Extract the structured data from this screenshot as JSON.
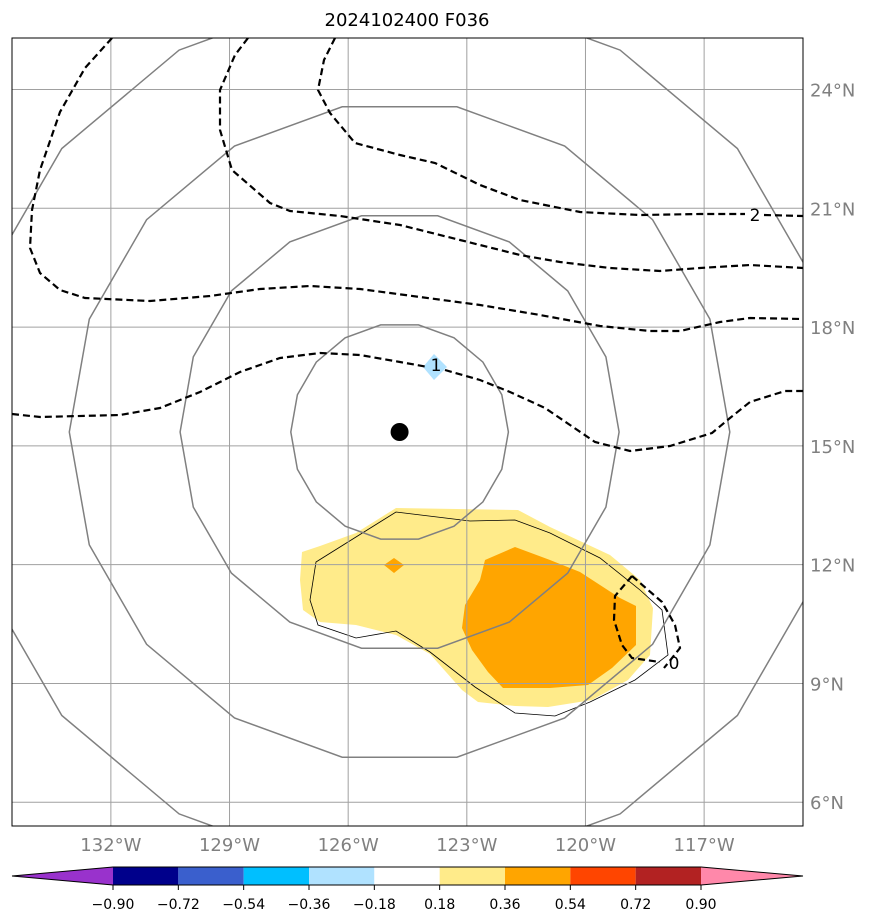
{
  "title": "2024102400 F036",
  "map": {
    "lon_range": [
      -134.5,
      -114.5
    ],
    "lat_range": [
      5.4,
      25.3
    ],
    "lon_ticks": [
      {
        "value": -132,
        "label": "132°W"
      },
      {
        "value": -129,
        "label": "129°W"
      },
      {
        "value": -126,
        "label": "126°W"
      },
      {
        "value": -123,
        "label": "123°W"
      },
      {
        "value": -120,
        "label": "120°W"
      },
      {
        "value": -117,
        "label": "117°W"
      }
    ],
    "lat_ticks": [
      {
        "value": 24,
        "label": "24°N"
      },
      {
        "value": 21,
        "label": "21°N"
      },
      {
        "value": 18,
        "label": "18°N"
      },
      {
        "value": 15,
        "label": "15°N"
      },
      {
        "value": 12,
        "label": "12°N"
      },
      {
        "value": 9,
        "label": "9°N"
      },
      {
        "value": 6,
        "label": "6°N"
      }
    ],
    "gridlines": true,
    "center_marker": {
      "lon": -124.7,
      "lat": 15.35
    },
    "range_rings_deg": [
      2.75,
      5.55,
      8.35,
      11.15
    ],
    "gridline_color": "#a0a0a0",
    "ring_color": "#808080",
    "contour_labels": [
      {
        "text": "2",
        "lon": -115.9,
        "lat": 20.9
      },
      {
        "text": "1",
        "lon": -124.0,
        "lat": 17.0
      },
      {
        "text": "0",
        "lon": -117.9,
        "lat": 9.5
      }
    ]
  },
  "colorbar": {
    "levels": [
      "−0.90",
      "−0.72",
      "−0.54",
      "−0.36",
      "−0.18",
      "0.18",
      "0.36",
      "0.54",
      "0.72",
      "0.90"
    ],
    "colors": [
      "#9932cc",
      "#00008b",
      "#3a5fcd",
      "#00bfff",
      "#b0e2ff",
      "#ffffff",
      "#ffeb8a",
      "#ffa500",
      "#ff4500",
      "#b22222",
      "#ff88aa"
    ]
  }
}
